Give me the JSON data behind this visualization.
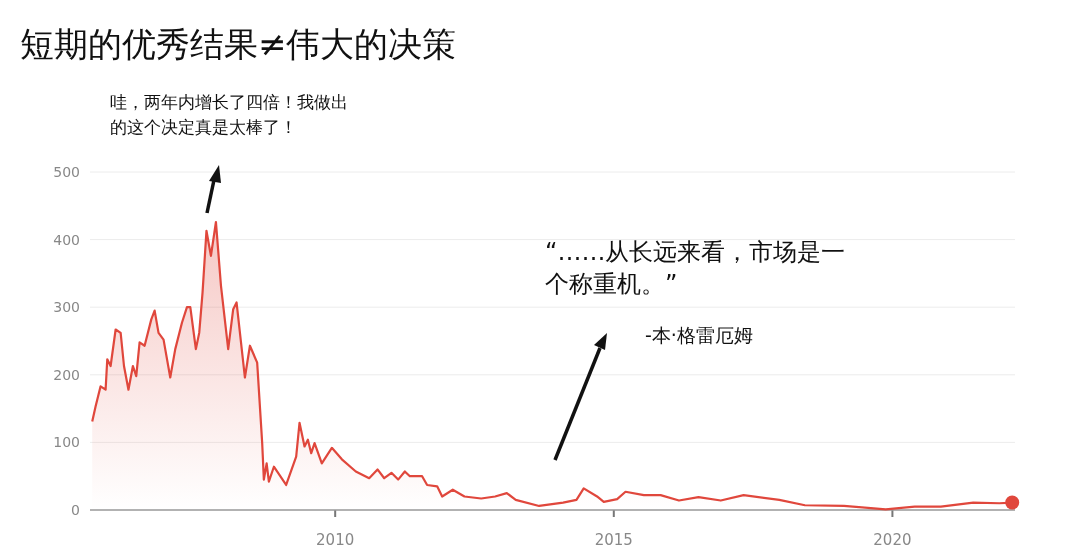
{
  "chart_data": {
    "type": "area",
    "title": "短期的优秀结果≠伟大的决策",
    "annotations": [
      "哇，两年内增长了四倍！我做出的这个决定真是太棒了！",
      "“……从长远来看，市场是一个称重机。”",
      "-本·格雷厄姆"
    ],
    "x": [
      2005.64,
      2005.7,
      2005.79,
      2005.88,
      2005.91,
      2005.97,
      2006.06,
      2006.15,
      2006.21,
      2006.29,
      2006.37,
      2006.43,
      2006.49,
      2006.58,
      2006.7,
      2006.76,
      2006.83,
      2006.92,
      2007.04,
      2007.13,
      2007.25,
      2007.34,
      2007.4,
      2007.5,
      2007.56,
      2007.62,
      2007.69,
      2007.77,
      2007.86,
      2007.95,
      2008.08,
      2008.17,
      2008.23,
      2008.38,
      2008.47,
      2008.6,
      2008.69,
      2008.72,
      2008.77,
      2008.81,
      2008.9,
      2009.12,
      2009.3,
      2009.36,
      2009.45,
      2009.51,
      2009.57,
      2009.63,
      2009.76,
      2009.94,
      2010.12,
      2010.37,
      2010.61,
      2010.76,
      2010.88,
      2011.01,
      2011.13,
      2011.25,
      2011.34,
      2011.56,
      2011.65,
      2011.83,
      2011.92,
      2012.11,
      2012.32,
      2012.62,
      2012.87,
      2013.08,
      2013.24,
      2013.66,
      2014.09,
      2014.33,
      2014.46,
      2014.7,
      2014.82,
      2015.06,
      2015.21,
      2015.54,
      2015.84,
      2016.17,
      2016.52,
      2016.92,
      2017.33,
      2017.97,
      2018.43,
      2019.13,
      2019.88,
      2020.4,
      2020.87,
      2021.45,
      2021.92,
      2022.15
    ],
    "series": [
      {
        "color": "#e0473c",
        "values": [
          131,
          153,
          183,
          178,
          223,
          213,
          267,
          262,
          213,
          178,
          213,
          198,
          248,
          243,
          282,
          295,
          262,
          252,
          196,
          238,
          277,
          300,
          300,
          238,
          262,
          322,
          413,
          376,
          426,
          332,
          238,
          297,
          307,
          196,
          243,
          218,
          99,
          45,
          69,
          42,
          64,
          37,
          79,
          129,
          94,
          104,
          84,
          99,
          69,
          92,
          75,
          57,
          47,
          60,
          47,
          55,
          45,
          57,
          50,
          50,
          37,
          35,
          20,
          30,
          20,
          17,
          20,
          25,
          15,
          6,
          11,
          15,
          32,
          20,
          12,
          16,
          27,
          22,
          22,
          14,
          19,
          14,
          22,
          15,
          7,
          6,
          1,
          5,
          5,
          11,
          10,
          11
        ]
      }
    ],
    "xlim": [
      2005.6,
      2022.2
    ],
    "xticks": [
      2010,
      2015,
      2020
    ],
    "ylim": [
      0,
      500
    ],
    "yticks": [
      0,
      100,
      200,
      300,
      400,
      500
    ],
    "grid": "y"
  }
}
